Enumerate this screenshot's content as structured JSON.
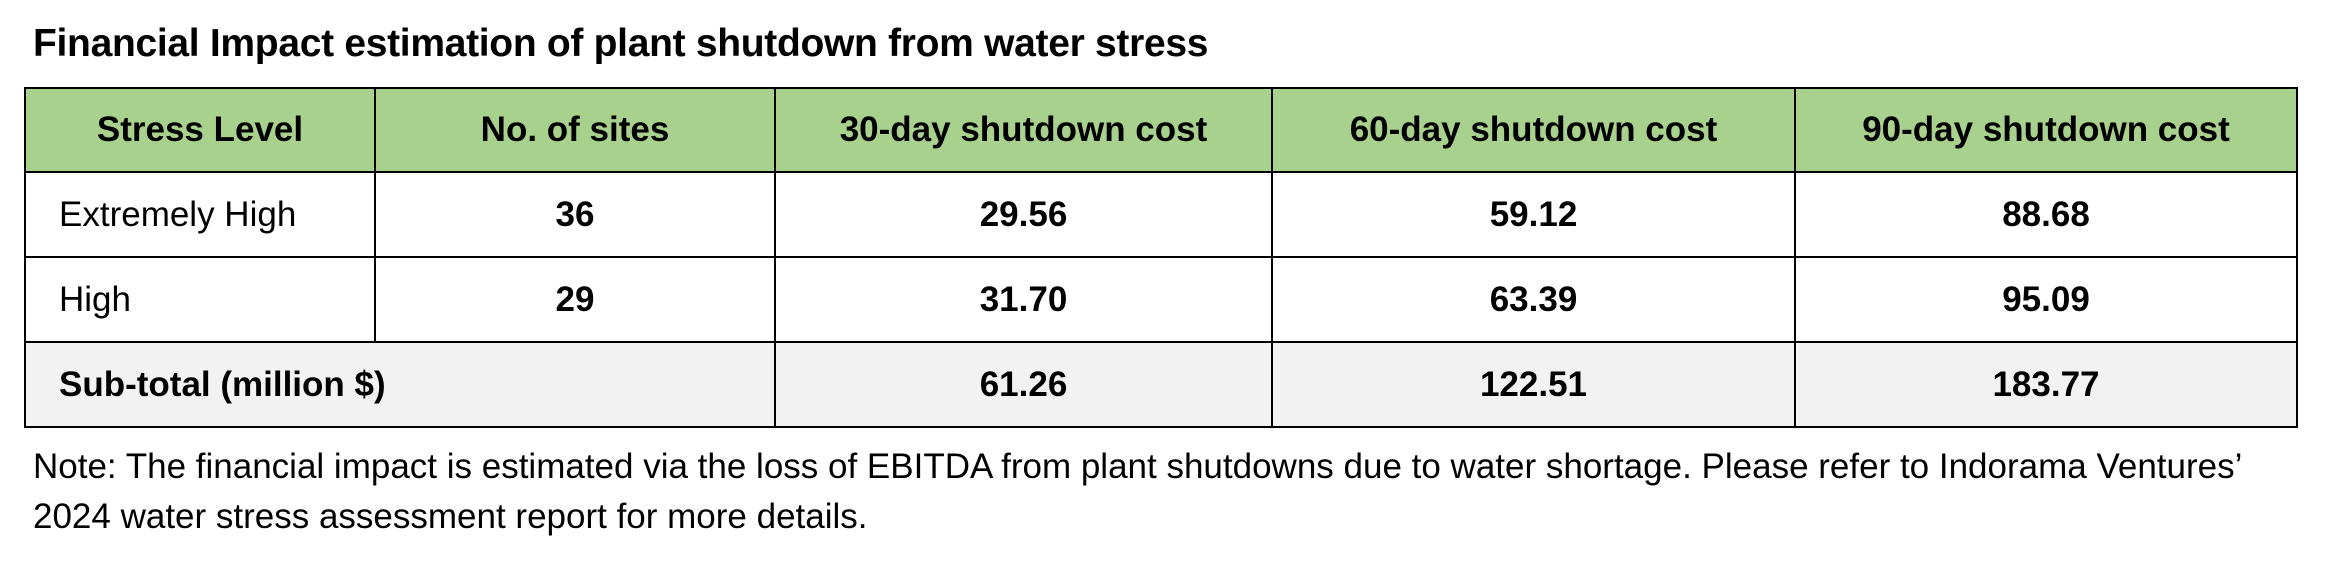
{
  "title": "Financial Impact estimation of plant shutdown from water stress",
  "colors": {
    "header_background": "#a9d18e",
    "subtotal_background": "#f2f2f2",
    "border": "#000000"
  },
  "table": {
    "headers": [
      "Stress Level",
      "No. of sites",
      "30-day shutdown cost",
      "60-day shutdown cost",
      "90-day shutdown cost"
    ],
    "rows": [
      {
        "stress_level": "Extremely High",
        "sites": "36",
        "cost_30": "29.56",
        "cost_60": "59.12",
        "cost_90": "88.68"
      },
      {
        "stress_level": "High",
        "sites": "29",
        "cost_30": "31.70",
        "cost_60": "63.39",
        "cost_90": "95.09"
      }
    ],
    "subtotal": {
      "label": "Sub-total (million $)",
      "cost_30": "61.26",
      "cost_60": "122.51",
      "cost_90": "183.77"
    }
  },
  "note": "Note: The financial impact is estimated via the loss of EBITDA from plant shutdowns due to water shortage. Please refer to Indorama Ventures’ 2024 water stress assessment report for more details."
}
